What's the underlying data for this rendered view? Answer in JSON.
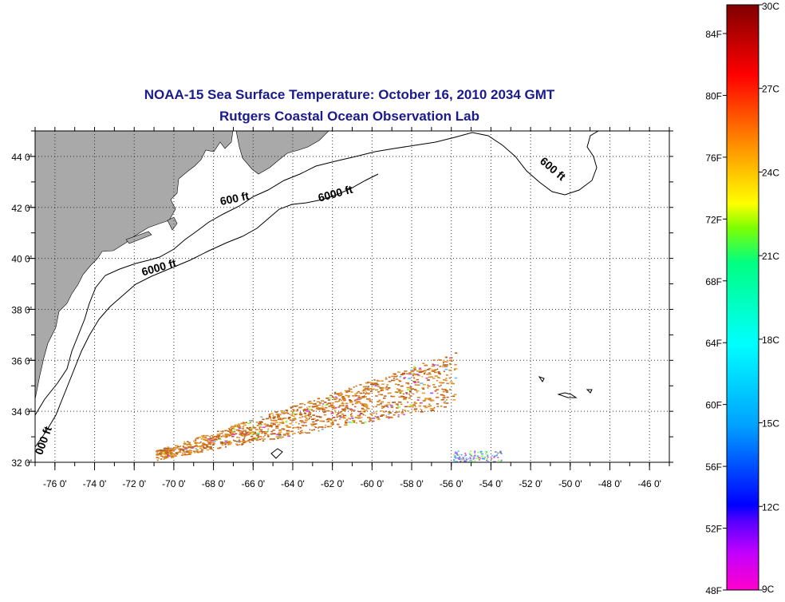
{
  "map": {
    "title": "NOAA-15 Sea Surface Temperature:  October 16, 2010 2034 GMT",
    "subtitle": "Rutgers Coastal Ocean Observation Lab",
    "lon_ticks": [
      "-76 0'",
      "-74 0'",
      "-72 0'",
      "-70 0'",
      "-68 0'",
      "-66 0'",
      "-64 0'",
      "-62 0'",
      "-60 0'",
      "-58 0'",
      "-56 0'",
      "-54 0'",
      "-52 0'",
      "-50 0'",
      "-48 0'",
      "-46 0'"
    ],
    "lat_ticks": [
      "44 0'",
      "42 0'",
      "40 0'",
      "38 0'",
      "36 0'",
      "34 0'",
      "32 0'"
    ],
    "lon_range": [
      -77,
      -45
    ],
    "lat_range": [
      32,
      45
    ],
    "contour_labels": [
      {
        "text": "600 ft",
        "lon": -66.9,
        "lat": 42.2
      },
      {
        "text": "6000 ft",
        "lon": -61.8,
        "lat": 42.4
      },
      {
        "text": "600 ft",
        "lon": -51.0,
        "lat": 43.4
      },
      {
        "text": "6000 ft",
        "lon": -70.7,
        "lat": 39.5
      },
      {
        "text": "000 ft",
        "lon": -76.4,
        "lat": 32.8
      }
    ],
    "land_color": "#a9a9a9",
    "grid": true
  },
  "colorbar": {
    "fahrenheit_labels": [
      "84F",
      "80F",
      "76F",
      "72F",
      "68F",
      "64F",
      "60F",
      "56F",
      "52F",
      "48F"
    ],
    "celsius_labels": [
      "30C",
      "27C",
      "24C",
      "21C",
      "18C",
      "15C",
      "12C",
      "9C"
    ],
    "range_c": [
      9,
      30
    ]
  }
}
